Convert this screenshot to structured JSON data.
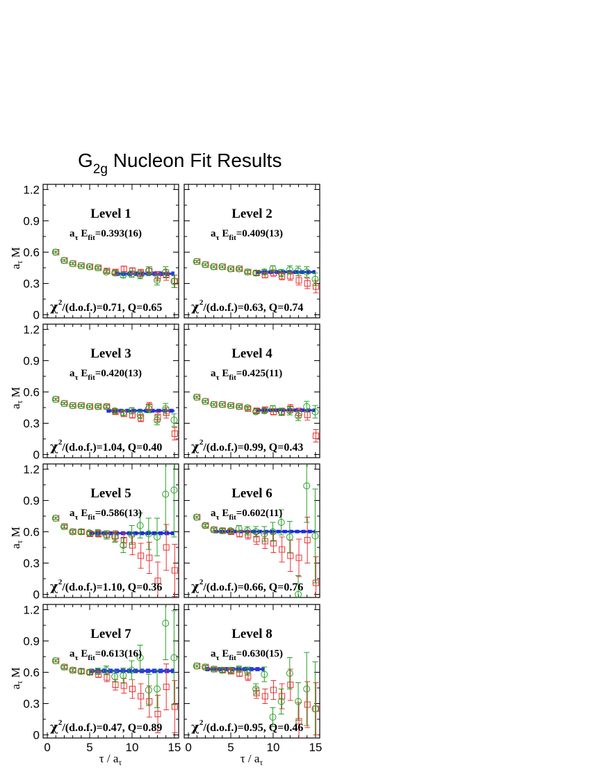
{
  "title": {
    "main": "G",
    "sub": "2g",
    "rest": " Nucleon Fit Results"
  },
  "axes": {
    "y_label_main": "a",
    "y_label_sub": "τ",
    "y_label_rest": " M",
    "x_label_main": "τ / a",
    "x_label_sub": "τ",
    "y_ticks": [
      "0",
      "0.3",
      "0.6",
      "0.9",
      "1.2"
    ],
    "x_ticks": [
      "0",
      "5",
      "10",
      "15"
    ]
  },
  "colors": {
    "red": "#ee3030",
    "green": "#22a022",
    "fit": "#1a2be0",
    "fit_band": "#9db0ee"
  },
  "chart_data": [
    {
      "type": "scatter",
      "level": "Level 1",
      "efit_prefix": "a",
      "efit_sub1": "τ",
      "efit_mid": " E",
      "efit_sub2": "fit",
      "efit_value": "=0.393(16)",
      "chi_sym": "χ",
      "chi_sup": "2",
      "chi_text": "/(d.o.f.)=0.71, Q=0.65",
      "xlim": [
        -0.5,
        15.5
      ],
      "ylim": [
        -0.03,
        1.25
      ],
      "fit": {
        "value": 0.393,
        "error": 0.016,
        "x_start": 8,
        "x_end": 15
      },
      "series": [
        {
          "color": "red",
          "marker": "square",
          "x": [
            1,
            2,
            3,
            4,
            5,
            6,
            7,
            8,
            9,
            10,
            11,
            12,
            13,
            14,
            15
          ],
          "y": [
            0.6,
            0.52,
            0.49,
            0.47,
            0.46,
            0.45,
            0.42,
            0.41,
            0.44,
            0.42,
            0.4,
            0.42,
            0.37,
            0.38,
            0.32
          ],
          "err": [
            0.01,
            0.01,
            0.01,
            0.01,
            0.01,
            0.012,
            0.015,
            0.02,
            0.025,
            0.03,
            0.035,
            0.04,
            0.045,
            0.05,
            0.06
          ]
        },
        {
          "color": "green",
          "marker": "circle",
          "x": [
            1,
            2,
            3,
            4,
            5,
            6,
            7,
            8,
            9,
            10,
            11,
            12,
            13,
            14,
            15
          ],
          "y": [
            0.6,
            0.52,
            0.49,
            0.47,
            0.46,
            0.45,
            0.41,
            0.4,
            0.38,
            0.39,
            0.38,
            0.42,
            0.33,
            0.41,
            0.32
          ],
          "err": [
            0.01,
            0.01,
            0.01,
            0.01,
            0.01,
            0.012,
            0.015,
            0.02,
            0.025,
            0.03,
            0.035,
            0.04,
            0.045,
            0.05,
            0.06
          ]
        }
      ]
    },
    {
      "type": "scatter",
      "level": "Level 2",
      "efit_prefix": "a",
      "efit_sub1": "τ",
      "efit_mid": " E",
      "efit_sub2": "fit",
      "efit_value": "=0.409(13)",
      "chi_sym": "χ",
      "chi_sup": "2",
      "chi_text": "/(d.o.f.)=0.63, Q=0.74",
      "xlim": [
        -0.5,
        15.5
      ],
      "ylim": [
        -0.03,
        1.25
      ],
      "fit": {
        "value": 0.409,
        "error": 0.013,
        "x_start": 8,
        "x_end": 15
      },
      "series": [
        {
          "color": "red",
          "marker": "square",
          "x": [
            1,
            2,
            3,
            4,
            5,
            6,
            7,
            8,
            9,
            10,
            11,
            12,
            13,
            14,
            15
          ],
          "y": [
            0.51,
            0.48,
            0.46,
            0.46,
            0.44,
            0.44,
            0.41,
            0.4,
            0.38,
            0.4,
            0.37,
            0.37,
            0.33,
            0.3,
            0.27
          ],
          "err": [
            0.01,
            0.01,
            0.01,
            0.01,
            0.01,
            0.012,
            0.015,
            0.02,
            0.025,
            0.03,
            0.035,
            0.04,
            0.045,
            0.05,
            0.06
          ]
        },
        {
          "color": "green",
          "marker": "circle",
          "x": [
            1,
            2,
            3,
            4,
            5,
            6,
            7,
            8,
            9,
            10,
            11,
            12,
            13,
            14,
            15
          ],
          "y": [
            0.51,
            0.48,
            0.46,
            0.46,
            0.44,
            0.44,
            0.41,
            0.4,
            0.41,
            0.44,
            0.4,
            0.43,
            0.42,
            0.41,
            0.34
          ],
          "err": [
            0.01,
            0.01,
            0.01,
            0.01,
            0.01,
            0.012,
            0.015,
            0.02,
            0.025,
            0.03,
            0.035,
            0.04,
            0.045,
            0.05,
            0.06
          ]
        }
      ]
    },
    {
      "type": "scatter",
      "level": "Level 3",
      "efit_prefix": "a",
      "efit_sub1": "τ",
      "efit_mid": " E",
      "efit_sub2": "fit",
      "efit_value": "=0.420(13)",
      "chi_sym": "χ",
      "chi_sup": "2",
      "chi_text": "/(d.o.f.)=1.04, Q=0.40",
      "xlim": [
        -0.5,
        15.5
      ],
      "ylim": [
        -0.03,
        1.25
      ],
      "fit": {
        "value": 0.42,
        "error": 0.013,
        "x_start": 7,
        "x_end": 15
      },
      "series": [
        {
          "color": "red",
          "marker": "square",
          "x": [
            1,
            2,
            3,
            4,
            5,
            6,
            7,
            8,
            9,
            10,
            11,
            12,
            13,
            14,
            15
          ],
          "y": [
            0.53,
            0.49,
            0.47,
            0.47,
            0.46,
            0.46,
            0.46,
            0.41,
            0.39,
            0.38,
            0.35,
            0.46,
            0.36,
            0.4,
            0.2
          ],
          "err": [
            0.01,
            0.01,
            0.01,
            0.01,
            0.01,
            0.012,
            0.015,
            0.02,
            0.025,
            0.03,
            0.035,
            0.04,
            0.045,
            0.05,
            0.06
          ]
        },
        {
          "color": "green",
          "marker": "circle",
          "x": [
            1,
            2,
            3,
            4,
            5,
            6,
            7,
            8,
            9,
            10,
            11,
            12,
            13,
            14,
            15
          ],
          "y": [
            0.53,
            0.49,
            0.47,
            0.47,
            0.46,
            0.46,
            0.46,
            0.42,
            0.4,
            0.42,
            0.38,
            0.44,
            0.33,
            0.44,
            0.33
          ],
          "err": [
            0.01,
            0.01,
            0.01,
            0.01,
            0.01,
            0.012,
            0.015,
            0.02,
            0.025,
            0.03,
            0.035,
            0.04,
            0.045,
            0.05,
            0.06
          ]
        }
      ]
    },
    {
      "type": "scatter",
      "level": "Level 4",
      "efit_prefix": "a",
      "efit_sub1": "τ",
      "efit_mid": " E",
      "efit_sub2": "fit",
      "efit_value": "=0.425(11)",
      "chi_sym": "χ",
      "chi_sup": "2",
      "chi_text": "/(d.o.f.)=0.99, Q=0.43",
      "xlim": [
        -0.5,
        15.5
      ],
      "ylim": [
        -0.03,
        1.25
      ],
      "fit": {
        "value": 0.425,
        "error": 0.011,
        "x_start": 8,
        "x_end": 15
      },
      "series": [
        {
          "color": "red",
          "marker": "square",
          "x": [
            1,
            2,
            3,
            4,
            5,
            6,
            7,
            8,
            9,
            10,
            11,
            12,
            13,
            14,
            15
          ],
          "y": [
            0.55,
            0.51,
            0.48,
            0.48,
            0.47,
            0.46,
            0.44,
            0.42,
            0.43,
            0.41,
            0.41,
            0.44,
            0.4,
            0.38,
            0.18
          ],
          "err": [
            0.01,
            0.01,
            0.01,
            0.01,
            0.01,
            0.012,
            0.015,
            0.02,
            0.025,
            0.03,
            0.035,
            0.04,
            0.045,
            0.05,
            0.06
          ]
        },
        {
          "color": "green",
          "marker": "circle",
          "x": [
            1,
            2,
            3,
            4,
            5,
            6,
            7,
            8,
            9,
            10,
            11,
            12,
            13,
            14,
            15
          ],
          "y": [
            0.55,
            0.51,
            0.48,
            0.48,
            0.47,
            0.46,
            0.45,
            0.41,
            0.42,
            0.44,
            0.41,
            0.42,
            0.37,
            0.46,
            0.41
          ],
          "err": [
            0.01,
            0.01,
            0.01,
            0.01,
            0.01,
            0.012,
            0.015,
            0.02,
            0.025,
            0.03,
            0.035,
            0.04,
            0.045,
            0.05,
            0.06
          ]
        }
      ]
    },
    {
      "type": "scatter",
      "level": "Level 5",
      "efit_prefix": "a",
      "efit_sub1": "τ",
      "efit_mid": " E",
      "efit_sub2": "fit",
      "efit_value": "=0.586(13)",
      "chi_sym": "χ",
      "chi_sup": "2",
      "chi_text": "/(d.o.f.)=1.10, Q=0.36",
      "xlim": [
        -0.5,
        15.5
      ],
      "ylim": [
        -0.03,
        1.25
      ],
      "fit": {
        "value": 0.586,
        "error": 0.013,
        "x_start": 5,
        "x_end": 15
      },
      "series": [
        {
          "color": "red",
          "marker": "square",
          "x": [
            1,
            2,
            3,
            4,
            5,
            6,
            7,
            8,
            9,
            10,
            11,
            12,
            13,
            14,
            15
          ],
          "y": [
            0.73,
            0.65,
            0.6,
            0.6,
            0.58,
            0.58,
            0.57,
            0.56,
            0.52,
            0.47,
            0.37,
            0.35,
            0.13,
            0.45,
            0.23
          ],
          "err": [
            0.01,
            0.015,
            0.015,
            0.02,
            0.02,
            0.03,
            0.04,
            0.05,
            0.07,
            0.09,
            0.12,
            0.15,
            0.18,
            0.22,
            0.25
          ]
        },
        {
          "color": "green",
          "marker": "circle",
          "x": [
            1,
            2,
            3,
            4,
            5,
            6,
            7,
            8,
            9,
            10,
            11,
            12,
            13,
            14,
            15
          ],
          "y": [
            0.73,
            0.65,
            0.6,
            0.6,
            0.59,
            0.59,
            0.57,
            0.55,
            0.47,
            0.57,
            0.66,
            0.58,
            0.55,
            0.96,
            1.0
          ],
          "err": [
            0.01,
            0.015,
            0.015,
            0.02,
            0.02,
            0.03,
            0.04,
            0.05,
            0.07,
            0.09,
            0.12,
            0.15,
            0.18,
            0.35,
            0.45
          ]
        }
      ]
    },
    {
      "type": "scatter",
      "level": "Level 6",
      "efit_prefix": "a",
      "efit_sub1": "τ",
      "efit_mid": " E",
      "efit_sub2": "fit",
      "efit_value": "=0.602(11)",
      "chi_sym": "χ",
      "chi_sup": "2",
      "chi_text": "/(d.o.f.)=0.66, Q=0.76",
      "xlim": [
        -0.5,
        15.5
      ],
      "ylim": [
        -0.03,
        1.25
      ],
      "fit": {
        "value": 0.602,
        "error": 0.011,
        "x_start": 3,
        "x_end": 15
      },
      "series": [
        {
          "color": "red",
          "marker": "square",
          "x": [
            1,
            2,
            3,
            4,
            5,
            6,
            7,
            8,
            9,
            10,
            11,
            12,
            13,
            14,
            15
          ],
          "y": [
            0.74,
            0.66,
            0.62,
            0.61,
            0.6,
            0.58,
            0.57,
            0.53,
            0.51,
            0.49,
            0.43,
            0.37,
            0.35,
            0.52,
            0.11
          ],
          "err": [
            0.01,
            0.015,
            0.015,
            0.02,
            0.02,
            0.03,
            0.04,
            0.05,
            0.07,
            0.09,
            0.12,
            0.15,
            0.18,
            0.22,
            0.25
          ]
        },
        {
          "color": "green",
          "marker": "circle",
          "x": [
            1,
            2,
            3,
            4,
            5,
            6,
            7,
            8,
            9,
            10,
            11,
            12,
            13,
            14,
            15
          ],
          "y": [
            0.74,
            0.66,
            0.62,
            0.61,
            0.61,
            0.63,
            0.61,
            0.6,
            0.58,
            0.6,
            0.69,
            0.55,
            0.0,
            1.04,
            0.56
          ],
          "err": [
            0.01,
            0.015,
            0.015,
            0.02,
            0.02,
            0.03,
            0.04,
            0.05,
            0.07,
            0.09,
            0.12,
            0.15,
            0.18,
            0.35,
            0.45
          ]
        }
      ]
    },
    {
      "type": "scatter",
      "level": "Level 7",
      "efit_prefix": "a",
      "efit_sub1": "τ",
      "efit_mid": " E",
      "efit_sub2": "fit",
      "efit_value": "=0.613(16)",
      "chi_sym": "χ",
      "chi_sup": "2",
      "chi_text": "/(d.o.f.)=0.47, Q=0.89",
      "xlim": [
        -0.5,
        15.5
      ],
      "ylim": [
        -0.03,
        1.25
      ],
      "fit": {
        "value": 0.613,
        "error": 0.016,
        "x_start": 5,
        "x_end": 15
      },
      "series": [
        {
          "color": "red",
          "marker": "square",
          "x": [
            1,
            2,
            3,
            4,
            5,
            6,
            7,
            8,
            9,
            10,
            11,
            12,
            13,
            14,
            15
          ],
          "y": [
            0.71,
            0.65,
            0.62,
            0.61,
            0.6,
            0.58,
            0.55,
            0.48,
            0.47,
            0.44,
            0.37,
            0.32,
            0.2,
            0.46,
            0.27
          ],
          "err": [
            0.01,
            0.015,
            0.015,
            0.02,
            0.02,
            0.03,
            0.04,
            0.05,
            0.07,
            0.09,
            0.12,
            0.15,
            0.18,
            0.22,
            0.25
          ]
        },
        {
          "color": "green",
          "marker": "circle",
          "x": [
            1,
            2,
            3,
            4,
            5,
            6,
            7,
            8,
            9,
            10,
            11,
            12,
            13,
            14,
            15
          ],
          "y": [
            0.71,
            0.65,
            0.62,
            0.61,
            0.6,
            0.61,
            0.62,
            0.56,
            0.57,
            0.62,
            0.74,
            0.43,
            0.44,
            1.07,
            0.74
          ],
          "err": [
            0.01,
            0.015,
            0.015,
            0.02,
            0.02,
            0.03,
            0.04,
            0.05,
            0.07,
            0.09,
            0.12,
            0.15,
            0.18,
            0.35,
            0.45
          ]
        }
      ]
    },
    {
      "type": "scatter",
      "level": "Level 8",
      "efit_prefix": "a",
      "efit_sub1": "τ",
      "efit_mid": " E",
      "efit_sub2": "fit",
      "efit_value": "=0.630(15)",
      "chi_sym": "χ",
      "chi_sup": "2",
      "chi_text": "/(d.o.f.)=0.95, Q=0.46",
      "xlim": [
        -0.5,
        15.5
      ],
      "ylim": [
        -0.03,
        1.25
      ],
      "fit": {
        "value": 0.63,
        "error": 0.015,
        "x_start": 2,
        "x_end": 9
      },
      "series": [
        {
          "color": "red",
          "marker": "square",
          "x": [
            1,
            2,
            3,
            4,
            5,
            6,
            7,
            8,
            9,
            10,
            11,
            12,
            13,
            14,
            15
          ],
          "y": [
            0.66,
            0.65,
            0.63,
            0.62,
            0.61,
            0.59,
            0.56,
            0.4,
            0.37,
            0.43,
            0.37,
            0.48,
            0.13,
            0.29,
            0.25
          ],
          "err": [
            0.01,
            0.015,
            0.015,
            0.02,
            0.02,
            0.03,
            0.04,
            0.05,
            0.07,
            0.09,
            0.12,
            0.15,
            0.18,
            0.22,
            0.25
          ]
        },
        {
          "color": "green",
          "marker": "circle",
          "x": [
            1,
            2,
            3,
            4,
            5,
            6,
            7,
            8,
            9,
            10,
            11,
            12,
            13,
            14,
            15
          ],
          "y": [
            0.66,
            0.65,
            0.63,
            0.62,
            0.62,
            0.63,
            0.61,
            0.44,
            0.58,
            0.17,
            0.32,
            0.59,
            0.32,
            0.44,
            0.25
          ],
          "err": [
            0.01,
            0.015,
            0.015,
            0.02,
            0.02,
            0.03,
            0.04,
            0.05,
            0.07,
            0.09,
            0.12,
            0.15,
            0.18,
            0.35,
            0.45
          ]
        }
      ]
    }
  ]
}
